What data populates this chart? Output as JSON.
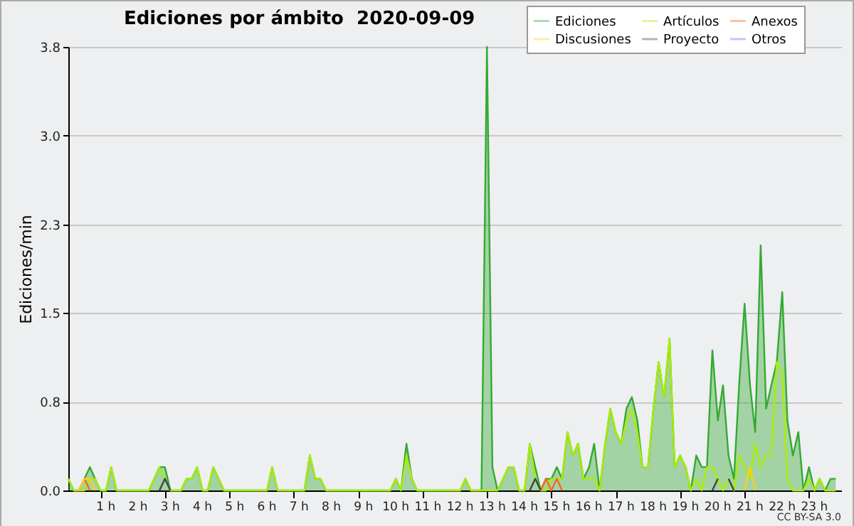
{
  "chart_data": {
    "type": "line",
    "title": "Ediciones por ámbito  2020-09-09",
    "ylabel": "Ediciones/min",
    "annotations": [
      "CC BY-SA 3.0"
    ],
    "xlim": [
      0,
      24
    ],
    "xticks": [
      {
        "value": 1,
        "label": "1 h"
      },
      {
        "value": 2,
        "label": "2 h"
      },
      {
        "value": 3,
        "label": "3 h"
      },
      {
        "value": 4,
        "label": "4 h"
      },
      {
        "value": 5,
        "label": "5 h"
      },
      {
        "value": 6,
        "label": "6 h"
      },
      {
        "value": 7,
        "label": "7 h"
      },
      {
        "value": 8,
        "label": "8 h"
      },
      {
        "value": 9,
        "label": "9 h"
      },
      {
        "value": 10,
        "label": "10 h"
      },
      {
        "value": 11,
        "label": "11 h"
      },
      {
        "value": 12,
        "label": "12 h"
      },
      {
        "value": 13,
        "label": "13 h"
      },
      {
        "value": 14,
        "label": "14 h"
      },
      {
        "value": 15,
        "label": "15 h"
      },
      {
        "value": 16,
        "label": "16 h"
      },
      {
        "value": 17,
        "label": "17 h"
      },
      {
        "value": 18,
        "label": "18 h"
      },
      {
        "value": 19,
        "label": "19 h"
      },
      {
        "value": 20,
        "label": "20 h"
      },
      {
        "value": 21,
        "label": "21 h"
      },
      {
        "value": 22,
        "label": "22 h"
      },
      {
        "value": 23,
        "label": "23 h"
      }
    ],
    "ylim": [
      0,
      3.8
    ],
    "yticks": [
      {
        "value": 0,
        "label": "0.0"
      },
      {
        "value": 0.76,
        "label": "0.8"
      },
      {
        "value": 1.52,
        "label": "1.5"
      },
      {
        "value": 2.28,
        "label": "2.3"
      },
      {
        "value": 3.04,
        "label": "3.0"
      },
      {
        "value": 3.8,
        "label": "3.8"
      }
    ],
    "grid": "y",
    "legend": "top right",
    "x": [
      0,
      0.17,
      0.33,
      0.5,
      0.67,
      0.83,
      1,
      1.17,
      1.33,
      1.5,
      1.67,
      1.83,
      2,
      2.17,
      2.33,
      2.5,
      2.67,
      2.83,
      3,
      3.17,
      3.33,
      3.5,
      3.67,
      3.83,
      4,
      4.17,
      4.33,
      4.5,
      4.67,
      4.83,
      5,
      5.17,
      5.33,
      5.5,
      5.67,
      5.83,
      6,
      6.17,
      6.33,
      6.5,
      6.67,
      6.83,
      7,
      7.17,
      7.33,
      7.5,
      7.67,
      7.83,
      8,
      8.17,
      8.33,
      8.5,
      8.67,
      8.83,
      9,
      9.17,
      9.33,
      9.5,
      9.67,
      9.83,
      10,
      10.17,
      10.33,
      10.5,
      10.67,
      10.83,
      11,
      11.17,
      11.33,
      11.5,
      11.67,
      11.83,
      12,
      12.17,
      12.33,
      12.5,
      12.67,
      12.83,
      13,
      13.17,
      13.33,
      13.5,
      13.67,
      13.83,
      14,
      14.17,
      14.33,
      14.5,
      14.67,
      14.83,
      15,
      15.17,
      15.33,
      15.5,
      15.67,
      15.83,
      16,
      16.17,
      16.33,
      16.5,
      16.67,
      16.83,
      17,
      17.17,
      17.33,
      17.5,
      17.67,
      17.83,
      18,
      18.17,
      18.33,
      18.5,
      18.67,
      18.83,
      19,
      19.17,
      19.33,
      19.5,
      19.67,
      19.83,
      20,
      20.17,
      20.33,
      20.5,
      20.67,
      20.83,
      21,
      21.17,
      21.33,
      21.5,
      21.67,
      21.83,
      22,
      22.17,
      22.33,
      22.5,
      22.67,
      22.83,
      23,
      23.17,
      23.33,
      23.5,
      23.67,
      23.83
    ],
    "series": [
      {
        "name": "Ediciones",
        "type": "area",
        "color": "#33aa33",
        "values": [
          0.1,
          0,
          0,
          0.1,
          0.2,
          0.1,
          0,
          0,
          0.2,
          0,
          0,
          0,
          0,
          0,
          0,
          0,
          0.1,
          0.2,
          0.2,
          0,
          0,
          0,
          0.1,
          0.1,
          0.2,
          0,
          0,
          0.2,
          0.1,
          0,
          0,
          0,
          0,
          0,
          0,
          0,
          0,
          0,
          0.2,
          0,
          0,
          0,
          0,
          0,
          0,
          0.3,
          0.1,
          0.1,
          0,
          0,
          0,
          0,
          0,
          0,
          0,
          0,
          0,
          0,
          0,
          0,
          0,
          0.1,
          0,
          0.4,
          0.1,
          0,
          0,
          0,
          0,
          0,
          0,
          0,
          0,
          0,
          0.1,
          0,
          0,
          0,
          3.8,
          0.2,
          0,
          0.1,
          0.2,
          0.2,
          0,
          0,
          0.4,
          0.2,
          0,
          0.1,
          0.1,
          0.2,
          0.1,
          0.5,
          0.3,
          0.4,
          0.1,
          0.2,
          0.4,
          0,
          0.4,
          0.7,
          0.5,
          0.4,
          0.7,
          0.8,
          0.6,
          0.2,
          0.2,
          0.7,
          1.1,
          0.8,
          1.3,
          0.2,
          0.3,
          0.2,
          0,
          0.3,
          0.2,
          0.2,
          1.2,
          0.6,
          0.9,
          0.3,
          0.1,
          0.9,
          1.6,
          0.9,
          0.5,
          2.1,
          0.7,
          0.9,
          1.1,
          1.7,
          0.6,
          0.3,
          0.5,
          0,
          0.2,
          0,
          0.1,
          0,
          0.1,
          0.1
        ]
      },
      {
        "name": "Artículos",
        "color": "#aaee00",
        "values": [
          0.1,
          0,
          0,
          0,
          0.1,
          0.1,
          0,
          0,
          0.2,
          0,
          0,
          0,
          0,
          0,
          0,
          0,
          0.1,
          0.2,
          0.1,
          0,
          0,
          0,
          0.1,
          0.1,
          0.2,
          0,
          0,
          0.2,
          0.1,
          0,
          0,
          0,
          0,
          0,
          0,
          0,
          0,
          0,
          0.2,
          0,
          0,
          0,
          0,
          0,
          0,
          0.3,
          0.1,
          0.1,
          0,
          0,
          0,
          0,
          0,
          0,
          0,
          0,
          0,
          0,
          0,
          0,
          0,
          0.1,
          0,
          0.3,
          0.1,
          0,
          0,
          0,
          0,
          0,
          0,
          0,
          0,
          0,
          0.1,
          0,
          0,
          0,
          0,
          0,
          0,
          0.1,
          0.2,
          0.2,
          0,
          0,
          0.4,
          0.1,
          0,
          0,
          0.1,
          0.1,
          0.1,
          0.5,
          0.3,
          0.4,
          0.1,
          0.1,
          0.1,
          0,
          0.4,
          0.7,
          0.5,
          0.4,
          0.6,
          0.7,
          0.5,
          0.2,
          0.2,
          0.7,
          1.1,
          0.8,
          1.3,
          0.2,
          0.3,
          0.2,
          0,
          0.1,
          0,
          0.2,
          0.2,
          0.1,
          0,
          0.1,
          0,
          0.3,
          0.2,
          0.1,
          0.4,
          0.2,
          0.3,
          0.3,
          1.1,
          1,
          0.1,
          0,
          0,
          0,
          0.1,
          0,
          0.1,
          0,
          0,
          0
        ]
      },
      {
        "name": "Anexos",
        "color": "#ff6622",
        "values": [
          null,
          null,
          0,
          0.1,
          0,
          null,
          null,
          null,
          null,
          null,
          null,
          null,
          null,
          null,
          null,
          null,
          null,
          null,
          null,
          null,
          null,
          null,
          null,
          null,
          null,
          null,
          null,
          null,
          null,
          null,
          null,
          null,
          null,
          null,
          null,
          null,
          null,
          null,
          null,
          null,
          null,
          null,
          null,
          null,
          null,
          null,
          null,
          null,
          null,
          null,
          null,
          null,
          null,
          null,
          null,
          null,
          null,
          null,
          null,
          null,
          null,
          null,
          null,
          null,
          null,
          null,
          null,
          null,
          null,
          null,
          null,
          null,
          null,
          null,
          null,
          null,
          null,
          null,
          null,
          null,
          null,
          null,
          null,
          null,
          null,
          null,
          null,
          null,
          0,
          0.1,
          0,
          0.1,
          0,
          null,
          null,
          null,
          null,
          null,
          null,
          null,
          null,
          null,
          null,
          null,
          null,
          null,
          null,
          null,
          null,
          null,
          null,
          null,
          null,
          null,
          null,
          null,
          null,
          null,
          null,
          null,
          null,
          null,
          null,
          null,
          null,
          null,
          null,
          null,
          null,
          null,
          null,
          null,
          null,
          null,
          null,
          null,
          null,
          null,
          null,
          null,
          null,
          null,
          null,
          null
        ]
      },
      {
        "name": "Discusiones",
        "color": "#ffcc22",
        "values": [
          null,
          null,
          0,
          0.1,
          0.1,
          0,
          null,
          null,
          null,
          null,
          null,
          null,
          null,
          null,
          null,
          null,
          null,
          null,
          null,
          null,
          null,
          null,
          null,
          null,
          null,
          null,
          null,
          null,
          null,
          null,
          null,
          null,
          null,
          null,
          null,
          null,
          null,
          null,
          null,
          null,
          null,
          null,
          null,
          null,
          null,
          null,
          null,
          null,
          null,
          null,
          null,
          null,
          null,
          null,
          null,
          null,
          null,
          null,
          null,
          null,
          null,
          null,
          null,
          null,
          null,
          null,
          null,
          null,
          null,
          null,
          null,
          null,
          null,
          null,
          null,
          null,
          null,
          null,
          null,
          null,
          null,
          null,
          null,
          null,
          null,
          null,
          null,
          null,
          null,
          null,
          null,
          null,
          null,
          null,
          null,
          null,
          null,
          null,
          null,
          null,
          null,
          null,
          null,
          null,
          null,
          null,
          null,
          null,
          null,
          null,
          null,
          null,
          null,
          null,
          null,
          null,
          null,
          null,
          null,
          null,
          null,
          null,
          null,
          null,
          null,
          null,
          0,
          0.2,
          0,
          null,
          null,
          null,
          null,
          null,
          null,
          null,
          null,
          null,
          null,
          null,
          null,
          null,
          null,
          null
        ]
      },
      {
        "name": "Proyecto",
        "color": "#444444",
        "values": [
          null,
          null,
          null,
          null,
          null,
          null,
          null,
          null,
          null,
          null,
          null,
          null,
          null,
          null,
          null,
          null,
          null,
          0,
          0.1,
          0,
          null,
          null,
          null,
          null,
          null,
          null,
          null,
          null,
          null,
          null,
          null,
          null,
          null,
          null,
          null,
          null,
          null,
          null,
          null,
          null,
          null,
          null,
          null,
          null,
          null,
          null,
          null,
          null,
          null,
          null,
          null,
          null,
          null,
          null,
          null,
          null,
          null,
          null,
          null,
          null,
          null,
          null,
          null,
          null,
          null,
          null,
          null,
          null,
          null,
          null,
          null,
          null,
          null,
          null,
          null,
          null,
          null,
          null,
          null,
          null,
          null,
          null,
          null,
          null,
          null,
          null,
          0,
          0.1,
          0,
          null,
          null,
          null,
          null,
          null,
          null,
          null,
          null,
          null,
          null,
          null,
          null,
          null,
          null,
          null,
          null,
          null,
          null,
          null,
          null,
          null,
          null,
          null,
          null,
          null,
          null,
          null,
          null,
          null,
          null,
          null,
          0,
          0.1,
          null,
          0.1,
          0,
          null,
          null,
          null,
          null,
          null,
          null,
          null,
          null,
          null,
          null,
          null,
          null,
          null,
          null,
          null,
          null,
          null,
          null,
          null
        ]
      },
      {
        "name": "Otros",
        "color": "#9955ee",
        "values": [
          null,
          null,
          null,
          null,
          null,
          null,
          null,
          null,
          null,
          null,
          null,
          null,
          null,
          null,
          null,
          null,
          null,
          null,
          null,
          null,
          null,
          null,
          null,
          null,
          null,
          null,
          null,
          null,
          null,
          null,
          null,
          null,
          null,
          null,
          null,
          null,
          null,
          null,
          null,
          null,
          null,
          null,
          null,
          null,
          null,
          null,
          null,
          null,
          null,
          null,
          null,
          null,
          null,
          null,
          null,
          null,
          null,
          null,
          null,
          null,
          null,
          null,
          null,
          null,
          null,
          null,
          null,
          null,
          null,
          null,
          null,
          null,
          null,
          null,
          null,
          null,
          null,
          null,
          null,
          null,
          null,
          null,
          null,
          null,
          null,
          null,
          null,
          null,
          null,
          null,
          null,
          null,
          null,
          null,
          null,
          null,
          null,
          null,
          null,
          null,
          null,
          null,
          null,
          null,
          null,
          null,
          null,
          null,
          null,
          null,
          null,
          null,
          null,
          null,
          null,
          null,
          null,
          null,
          null,
          null,
          null,
          null,
          null,
          null,
          null,
          null,
          null,
          null,
          null,
          null,
          null,
          null,
          null,
          null,
          null,
          null,
          null,
          null,
          null,
          null,
          null,
          null,
          null,
          null
        ]
      }
    ]
  }
}
